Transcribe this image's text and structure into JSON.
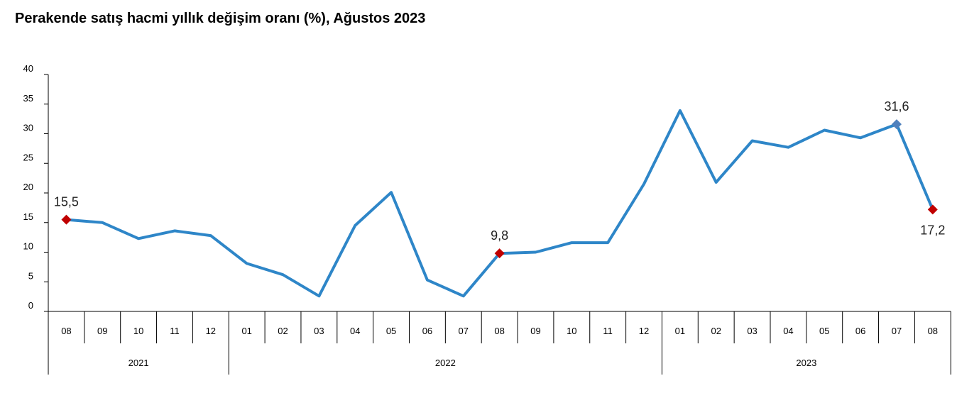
{
  "chart_data": {
    "type": "line",
    "title": "Perakende satış hacmi yıllık değişim oranı (%), Ağustos 2023",
    "xlabel": "",
    "ylabel": "",
    "ylim": [
      0,
      40
    ],
    "yticks": [
      "0",
      "5",
      "10",
      "15",
      "20",
      "25",
      "30",
      "35",
      "40"
    ],
    "grid": false,
    "legend": "none",
    "categories": [
      "08",
      "09",
      "10",
      "11",
      "12",
      "01",
      "02",
      "03",
      "04",
      "05",
      "06",
      "07",
      "08",
      "09",
      "10",
      "11",
      "12",
      "01",
      "02",
      "03",
      "04",
      "05",
      "06",
      "07",
      "08"
    ],
    "years": [
      {
        "label": "2021",
        "start": 0,
        "end": 4
      },
      {
        "label": "2022",
        "start": 5,
        "end": 16
      },
      {
        "label": "2023",
        "start": 17,
        "end": 24
      }
    ],
    "series": [
      {
        "values": [
          15.5,
          15.0,
          12.3,
          13.6,
          12.8,
          8.1,
          6.2,
          2.6,
          14.5,
          20.1,
          5.3,
          2.6,
          9.8,
          10.0,
          11.6,
          11.6,
          21.5,
          33.9,
          21.8,
          28.8,
          27.7,
          30.6,
          29.3,
          31.6,
          17.2
        ],
        "color": "#2E86C8"
      }
    ],
    "annotations": [
      {
        "index": 0,
        "text": "15,5",
        "marker_color": "#C00000"
      },
      {
        "index": 12,
        "text": "9,8",
        "marker_color": "#C00000"
      },
      {
        "index": 23,
        "text": "31,6",
        "marker_color": "#4F81BD"
      },
      {
        "index": 24,
        "text": "17,2",
        "marker_color": "#C00000"
      }
    ]
  }
}
